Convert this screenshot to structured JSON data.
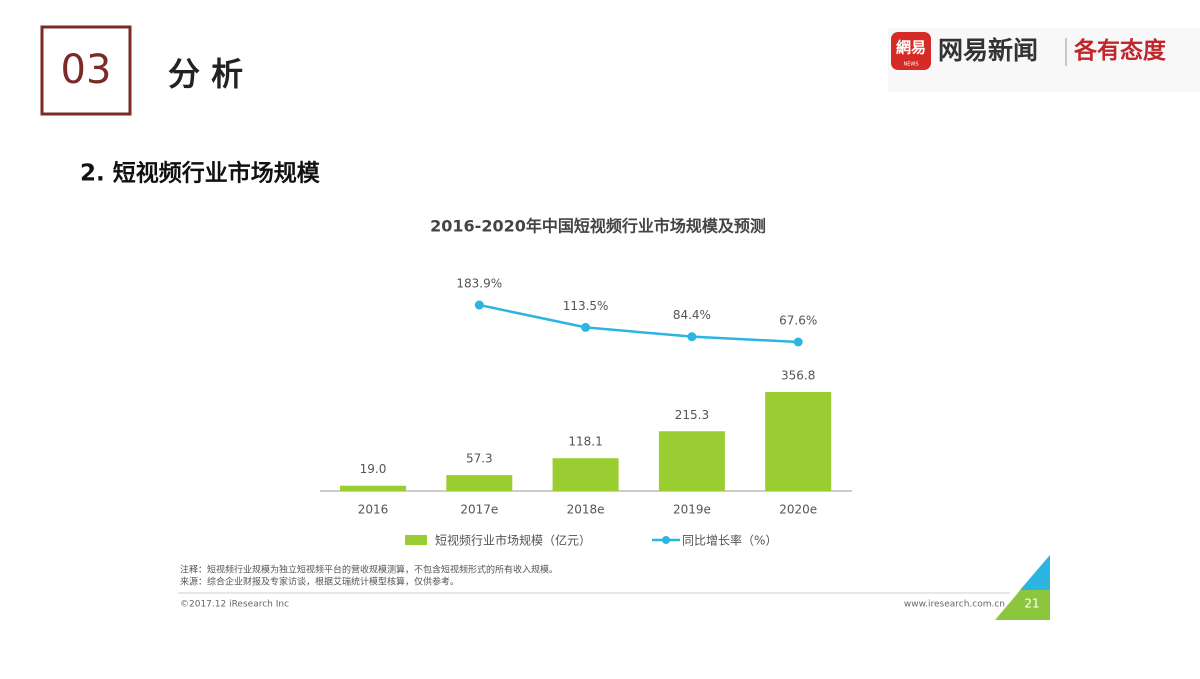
{
  "header": {
    "section_number": "03",
    "section_title": "分 析",
    "subtitle": "2. 短视频行业市场规模",
    "logo_icon": "網易",
    "logo_icon_sub": "NEWS",
    "logo_name": "网易新闻",
    "logo_slogan": "各有态度"
  },
  "chart_data": {
    "type": "bar_line",
    "title": "2016-2020年中国短视频行业市场规模及预测",
    "categories": [
      "2016",
      "2017e",
      "2018e",
      "2019e",
      "2020e"
    ],
    "series": [
      {
        "name": "短视频行业市场规模（亿元）",
        "type": "bar",
        "color": "#9acd32",
        "values": [
          19.0,
          57.3,
          118.1,
          215.3,
          356.8
        ],
        "value_labels": [
          "19.0",
          "57.3",
          "118.1",
          "215.3",
          "356.8"
        ]
      },
      {
        "name": "同比增长率（%）",
        "type": "line",
        "color": "#2bb5e0",
        "values": [
          null,
          183.9,
          113.5,
          84.4,
          67.6
        ],
        "value_labels": [
          null,
          "183.9%",
          "113.5%",
          "84.4%",
          "67.6%"
        ]
      }
    ]
  },
  "footer": {
    "note": "注释：短视频行业规模为独立短视频平台的营收规模测算，不包含短视频形式的所有收入规模。",
    "source": "来源：综合企业财报及专家访谈，根据艾瑞统计模型核算，仅供参考。",
    "copyright": "©2017.12 iResearch Inc",
    "website": "www.iresearch.com.cn",
    "page": "21"
  }
}
